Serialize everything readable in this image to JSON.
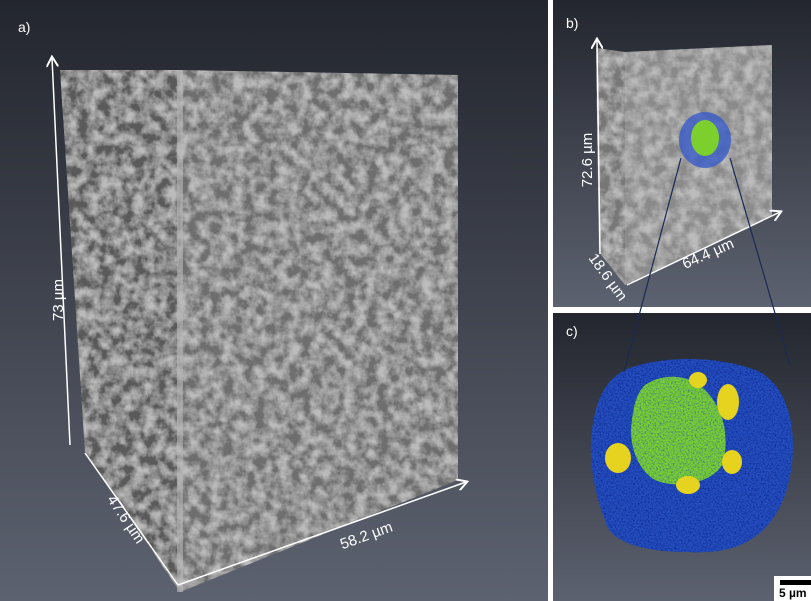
{
  "panels": [
    {
      "label": "a)",
      "dimensions": [
        "73 µm",
        "47.6 µm",
        "58.2 µm"
      ]
    },
    {
      "label": "b)",
      "dimensions": [
        "72.6 µm",
        "18.6 µm",
        "64.4 µm"
      ]
    },
    {
      "label": "c)",
      "scale_bar": "5 µm"
    }
  ]
}
